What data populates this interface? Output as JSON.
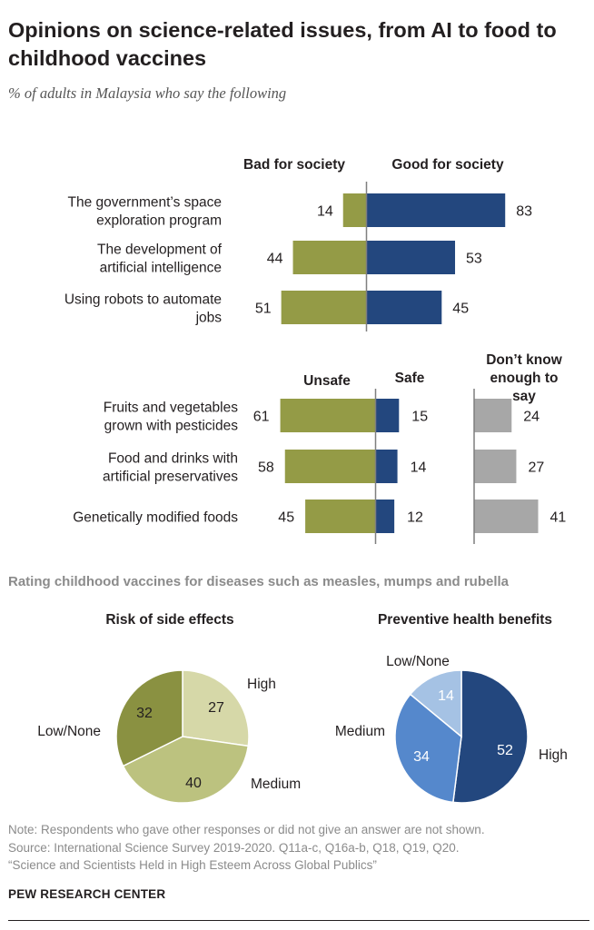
{
  "title": "Opinions on science-related issues, from AI to food to childhood vaccines",
  "subtitle": "% of adults in Malaysia who say the following",
  "colors": {
    "green": "#949b46",
    "blue": "#23477e",
    "gray": "#a7a7a7",
    "pie_olive": "#8a9141",
    "pie_light": "#d6d8a8",
    "pie_mid": "#bcc27f",
    "pie_navy": "#23477e",
    "pie_med_blue": "#5588cc",
    "pie_light_blue": "#a5c2e4"
  },
  "chart_data": [
    {
      "type": "bar",
      "subtype": "diverging",
      "column_labels": {
        "negative": "Bad for society",
        "positive": "Good for society"
      },
      "categories": [
        "The government’s space exploration program",
        "The development of artificial intelligence",
        "Using robots to automate jobs"
      ],
      "series": [
        {
          "name": "Bad for society",
          "values": [
            14,
            44,
            51
          ]
        },
        {
          "name": "Good for society",
          "values": [
            83,
            53,
            45
          ]
        }
      ]
    },
    {
      "type": "bar",
      "subtype": "diverging",
      "column_labels": {
        "negative": "Unsafe",
        "positive": "Safe",
        "extra": "Don’t know enough to say"
      },
      "categories": [
        "Fruits and vegetables grown with pesticides",
        "Food and drinks with artificial preservatives",
        "Genetically modified foods"
      ],
      "series": [
        {
          "name": "Unsafe",
          "values": [
            61,
            58,
            45
          ]
        },
        {
          "name": "Safe",
          "values": [
            15,
            14,
            12
          ]
        },
        {
          "name": "Don’t know enough to say",
          "values": [
            24,
            27,
            41
          ]
        }
      ]
    },
    {
      "type": "pie",
      "section_title": "Rating childhood vaccines for diseases such as measles, mumps and rubella",
      "title": "Risk of side effects",
      "slices": [
        {
          "label": "High",
          "value": 27
        },
        {
          "label": "Medium",
          "value": 40
        },
        {
          "label": "Low/None",
          "value": 32
        }
      ]
    },
    {
      "type": "pie",
      "title": "Preventive health benefits",
      "slices": [
        {
          "label": "High",
          "value": 52
        },
        {
          "label": "Medium",
          "value": 34
        },
        {
          "label": "Low/None",
          "value": 14
        }
      ]
    }
  ],
  "notes": [
    "Note: Respondents who gave other responses or did not give an answer are not shown.",
    "Source: International Science Survey 2019-2020. Q11a-c, Q16a-b, Q18, Q19, Q20.",
    "“Science and Scientists Held in High Esteem Across Global Publics”"
  ],
  "brand": "PEW RESEARCH CENTER"
}
